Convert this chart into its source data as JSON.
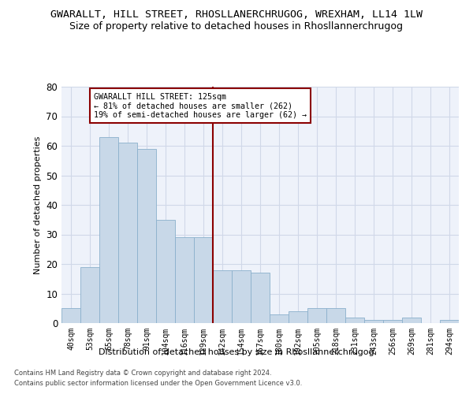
{
  "title": "GWARALLT, HILL STREET, RHOSLLANERCHRUGOG, WREXHAM, LL14 1LW",
  "subtitle": "Size of property relative to detached houses in Rhosllannerchrugog",
  "xlabel": "Distribution of detached houses by size in Rhosllannerchrugog",
  "ylabel": "Number of detached properties",
  "categories": [
    "40sqm",
    "53sqm",
    "65sqm",
    "78sqm",
    "91sqm",
    "104sqm",
    "116sqm",
    "129sqm",
    "142sqm",
    "154sqm",
    "167sqm",
    "180sqm",
    "192sqm",
    "205sqm",
    "218sqm",
    "231sqm",
    "243sqm",
    "256sqm",
    "269sqm",
    "281sqm",
    "294sqm"
  ],
  "values": [
    5,
    19,
    63,
    61,
    59,
    35,
    29,
    29,
    18,
    18,
    17,
    3,
    4,
    5,
    5,
    2,
    1,
    1,
    2,
    0,
    1
  ],
  "bar_color": "#c8d8e8",
  "bar_edge_color": "#8ab0cc",
  "vline_pos": 7.5,
  "vline_color": "#8b0000",
  "annotation_title": "GWARALLT HILL STREET: 125sqm",
  "annotation_line1": "← 81% of detached houses are smaller (262)",
  "annotation_line2": "19% of semi-detached houses are larger (62) →",
  "annotation_box_color": "#ffffff",
  "annotation_box_edge": "#8b0000",
  "ylim": [
    0,
    80
  ],
  "yticks": [
    0,
    10,
    20,
    30,
    40,
    50,
    60,
    70,
    80
  ],
  "grid_color": "#d0d8e8",
  "bg_color": "#eef2fa",
  "footer1": "Contains HM Land Registry data © Crown copyright and database right 2024.",
  "footer2": "Contains public sector information licensed under the Open Government Licence v3.0.",
  "title_fontsize": 9.5,
  "subtitle_fontsize": 9
}
